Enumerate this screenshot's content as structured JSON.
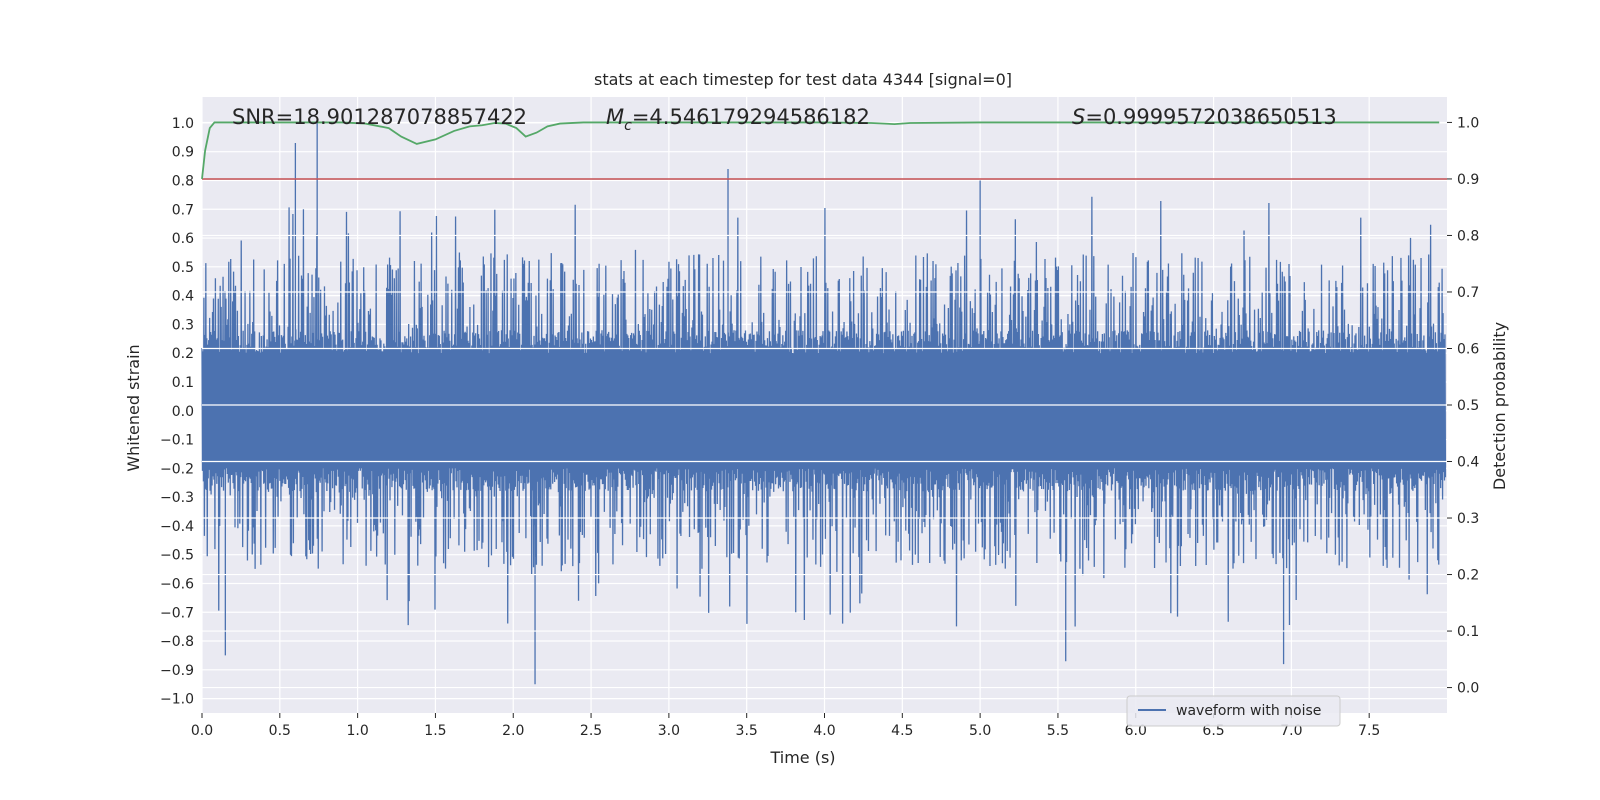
{
  "chart_data": {
    "type": "line",
    "title": "stats at each timestep for test data 4344 [signal=0]",
    "xlabel": "Time (s)",
    "ylabel": "Whitened strain",
    "y2label": "Detection probability",
    "xlim": [
      0,
      8.0
    ],
    "ylim": [
      -1.05,
      1.09
    ],
    "y2lim": [
      -0.045,
      1.045
    ],
    "x_ticks": [
      0.0,
      0.5,
      1.0,
      1.5,
      2.0,
      2.5,
      3.0,
      3.5,
      4.0,
      4.5,
      5.0,
      5.5,
      6.0,
      6.5,
      7.0,
      7.5
    ],
    "x_tick_labels": [
      "0.0",
      "0.5",
      "1.0",
      "1.5",
      "2.0",
      "2.5",
      "3.0",
      "3.5",
      "4.0",
      "4.5",
      "5.0",
      "5.5",
      "6.0",
      "6.5",
      "7.0",
      "7.5"
    ],
    "y_ticks": [
      1.0,
      0.9,
      0.8,
      0.7,
      0.6,
      0.5,
      0.4,
      0.3,
      0.2,
      0.1,
      0.0,
      -0.1,
      -0.2,
      -0.3,
      -0.4,
      -0.5,
      -0.6,
      -0.7,
      -0.8,
      -0.9,
      -1.0
    ],
    "y_tick_labels": [
      "1.0",
      "0.9",
      "0.8",
      "0.7",
      "0.6",
      "0.5",
      "0.4",
      "0.3",
      "0.2",
      "0.1",
      "0.0",
      "−0.1",
      "−0.2",
      "−0.3",
      "−0.4",
      "−0.5",
      "−0.6",
      "−0.7",
      "−0.8",
      "−0.9",
      "−1.0"
    ],
    "y2_ticks": [
      1.0,
      0.9,
      0.8,
      0.7,
      0.6,
      0.5,
      0.4,
      0.3,
      0.2,
      0.1,
      0.0
    ],
    "y2_tick_labels": [
      "1.0",
      "0.9",
      "0.8",
      "0.7",
      "0.6",
      "0.5",
      "0.4",
      "0.3",
      "0.2",
      "0.1",
      "0.0"
    ],
    "grid": true,
    "legend_position": "lower-right",
    "annotations": {
      "snr": "SNR=18.901287078857422",
      "mc_symbol": "M",
      "mc_sub": "c",
      "mc_value": "=4.546179294586182",
      "s_symbol": "S",
      "s_value": "=0.9999572038650513"
    },
    "series": [
      {
        "name": "waveform with noise",
        "axis": "left",
        "color": "#4c72b0",
        "kind": "noise-waveform",
        "core_amplitude": 0.2,
        "typical_peak": 0.55,
        "extreme_points": [
          {
            "x": 0.6,
            "y": 0.93
          },
          {
            "x": 0.74,
            "y": 1.0
          },
          {
            "x": 3.38,
            "y": 0.84
          },
          {
            "x": 5.0,
            "y": 0.8
          },
          {
            "x": 2.14,
            "y": -0.95
          },
          {
            "x": 0.15,
            "y": -0.85
          },
          {
            "x": 6.95,
            "y": -0.88
          },
          {
            "x": 5.55,
            "y": -0.87
          }
        ]
      },
      {
        "name": "",
        "axis": "right",
        "color": "#55a868",
        "kind": "probability",
        "x": [
          0.0,
          0.02,
          0.05,
          0.08,
          0.15,
          0.3,
          0.6,
          0.9,
          1.05,
          1.2,
          1.28,
          1.38,
          1.5,
          1.62,
          1.72,
          1.8,
          1.88,
          1.95,
          2.02,
          2.08,
          2.15,
          2.22,
          2.3,
          2.45,
          2.6,
          3.0,
          3.5,
          4.0,
          4.3,
          4.45,
          4.55,
          5.0,
          6.0,
          7.0,
          7.95
        ],
        "y": [
          0.9,
          0.95,
          0.99,
          1.0,
          1.0,
          1.0,
          1.0,
          1.0,
          0.998,
          0.99,
          0.975,
          0.962,
          0.97,
          0.985,
          0.993,
          0.995,
          0.999,
          0.998,
          0.99,
          0.975,
          0.982,
          0.993,
          0.998,
          1.0,
          1.0,
          1.0,
          1.0,
          1.0,
          0.999,
          0.997,
          0.999,
          1.0,
          1.0,
          1.0,
          1.0
        ]
      },
      {
        "name": "",
        "axis": "right",
        "color": "#c44e52",
        "kind": "threshold",
        "value": 0.9
      }
    ]
  }
}
